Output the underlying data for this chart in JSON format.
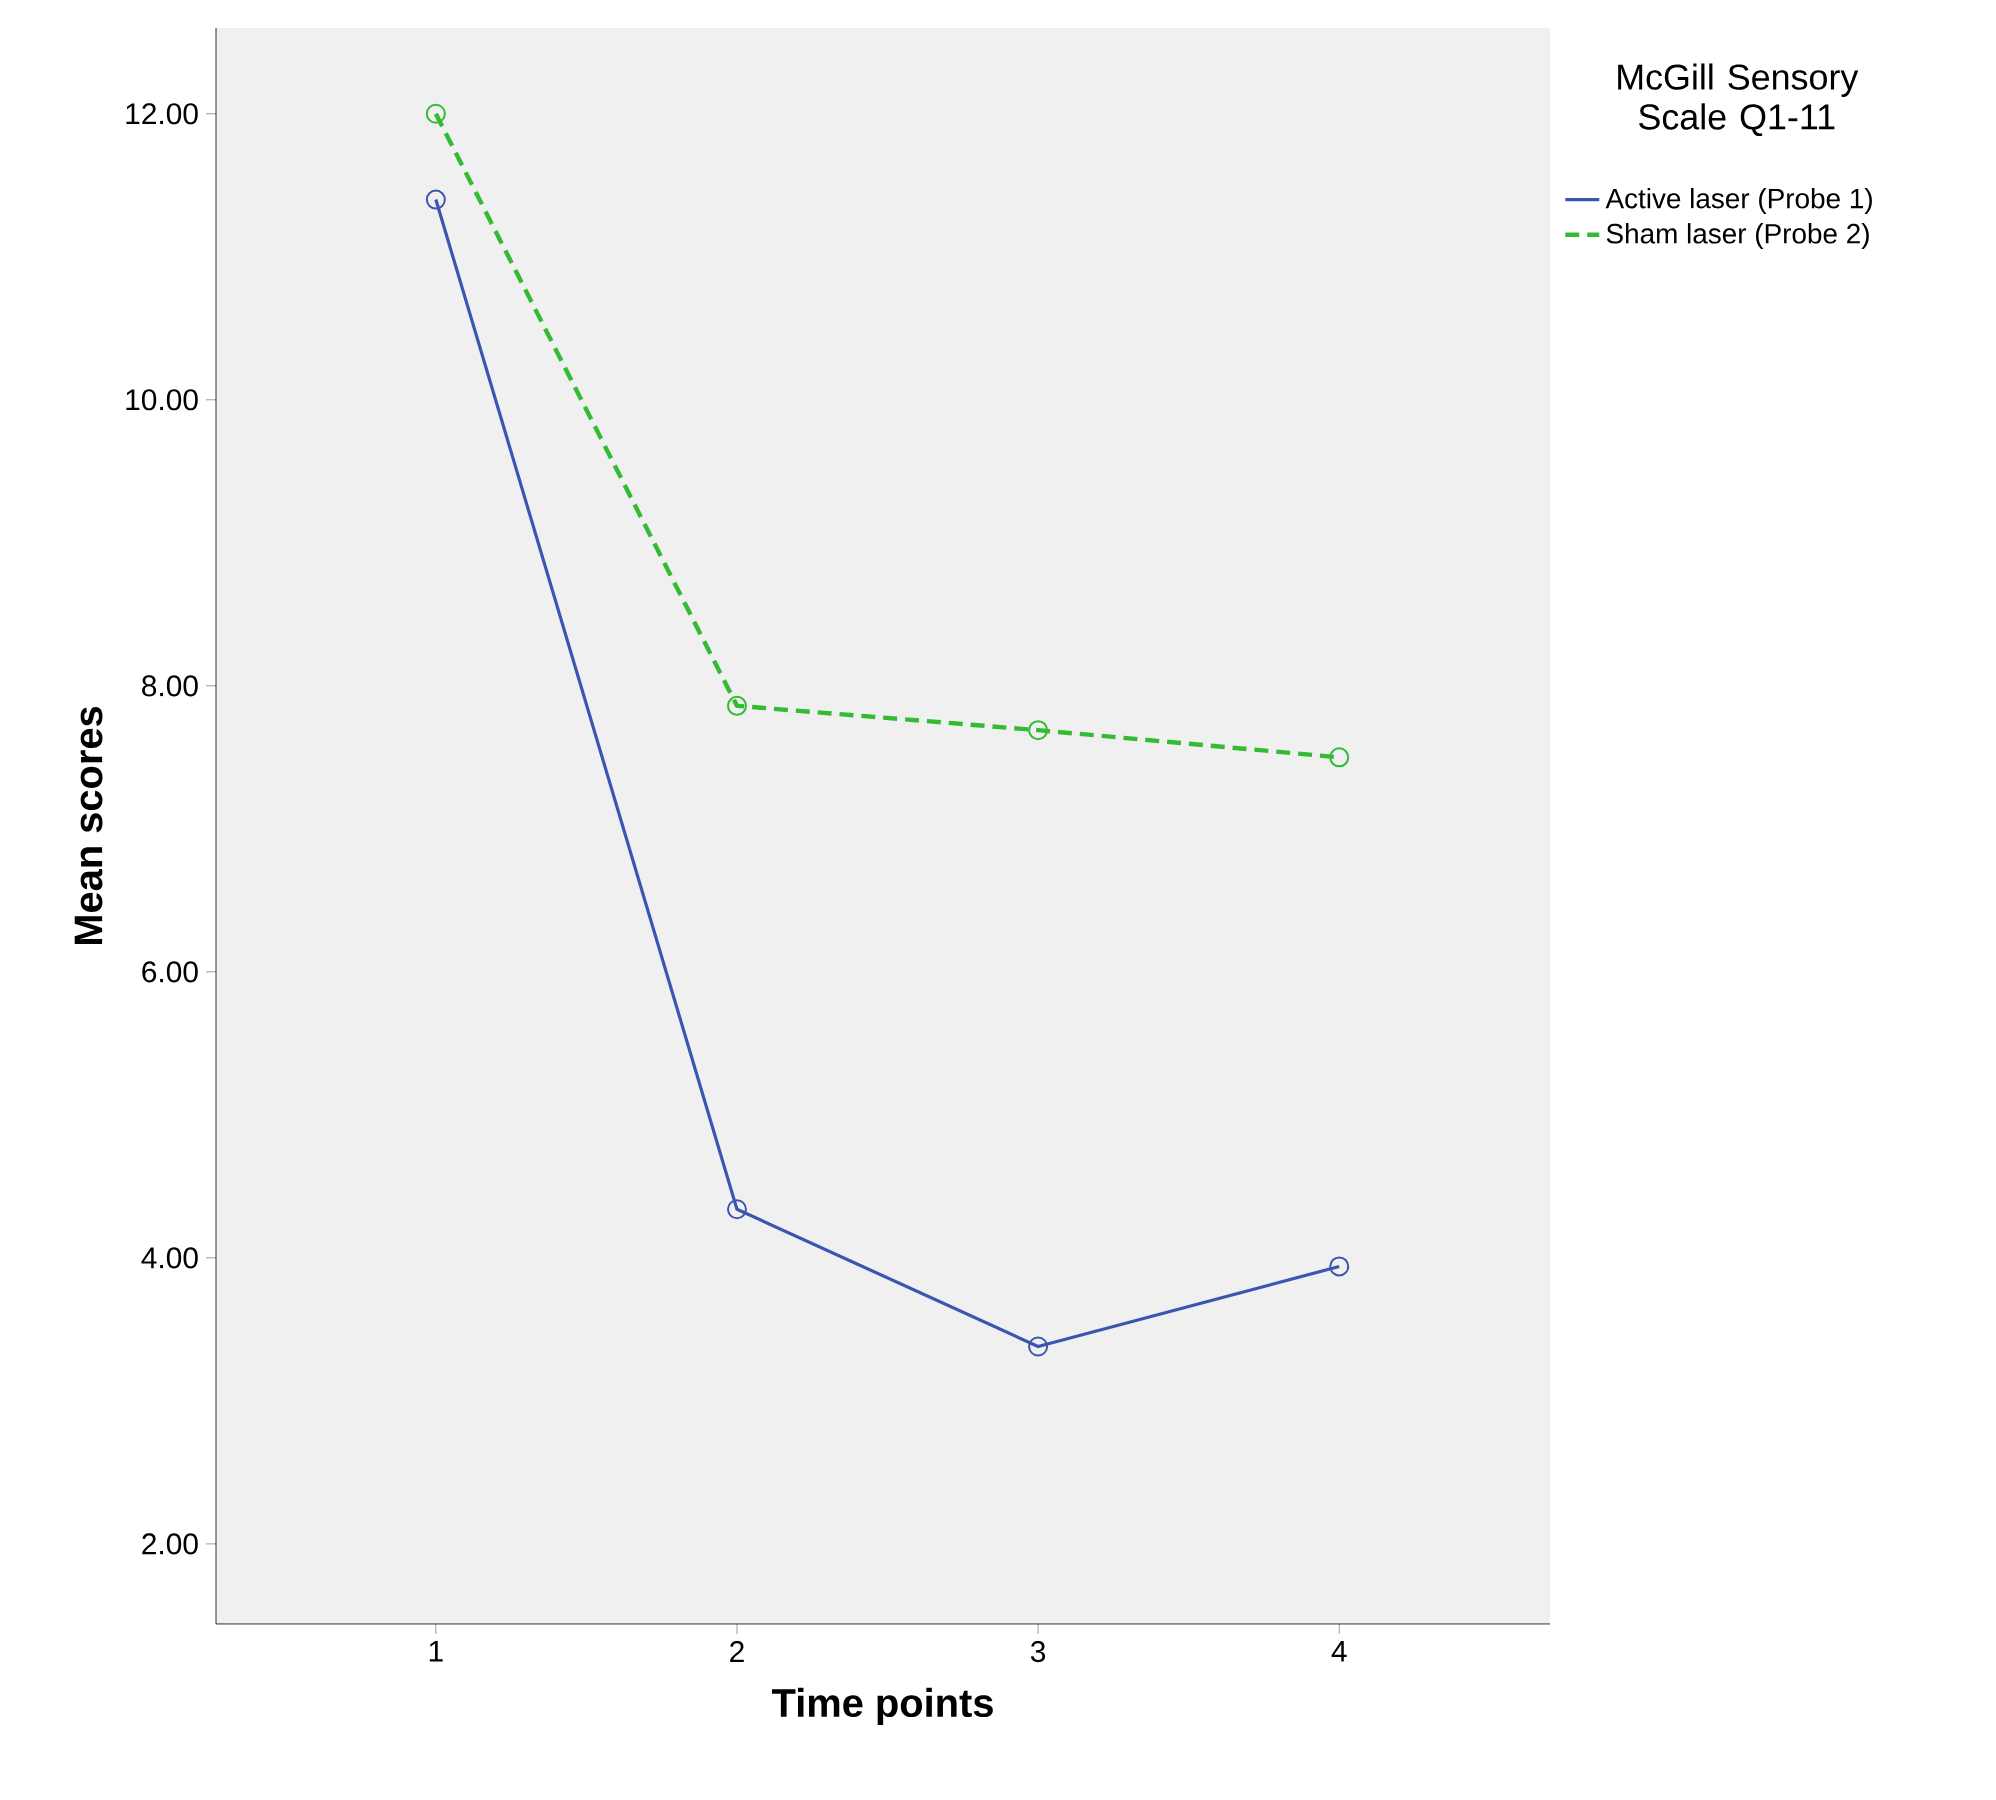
{
  "chart_data": {
    "type": "line",
    "xlabel": "Time points",
    "ylabel": "Mean scores",
    "legend_title": "McGill Sensory Scale Q1-11",
    "x": [
      1,
      2,
      3,
      4
    ],
    "series": [
      {
        "name": "Active laser (Probe 1)",
        "color": "#3c55b0",
        "line_style": "solid",
        "values": [
          11.4,
          4.34,
          3.38,
          3.94
        ]
      },
      {
        "name": "Sham laser (Probe 2)",
        "color": "#33bb33",
        "line_style": "dashed",
        "values": [
          12.0,
          7.86,
          7.69,
          7.5
        ]
      }
    ],
    "xlim": [
      0.27,
      4.7
    ],
    "ylim": [
      1.44,
      12.6
    ],
    "xticks": [
      1,
      2,
      3,
      4
    ],
    "yticks": [
      {
        "value": 2,
        "label": "2.00"
      },
      {
        "value": 4,
        "label": "4.00"
      },
      {
        "value": 6,
        "label": "6.00"
      },
      {
        "value": 8,
        "label": "8.00"
      },
      {
        "value": 10,
        "label": "10.00"
      },
      {
        "value": 12,
        "label": "12.00"
      }
    ],
    "marker": "circle",
    "grid": false,
    "legend": "right"
  }
}
